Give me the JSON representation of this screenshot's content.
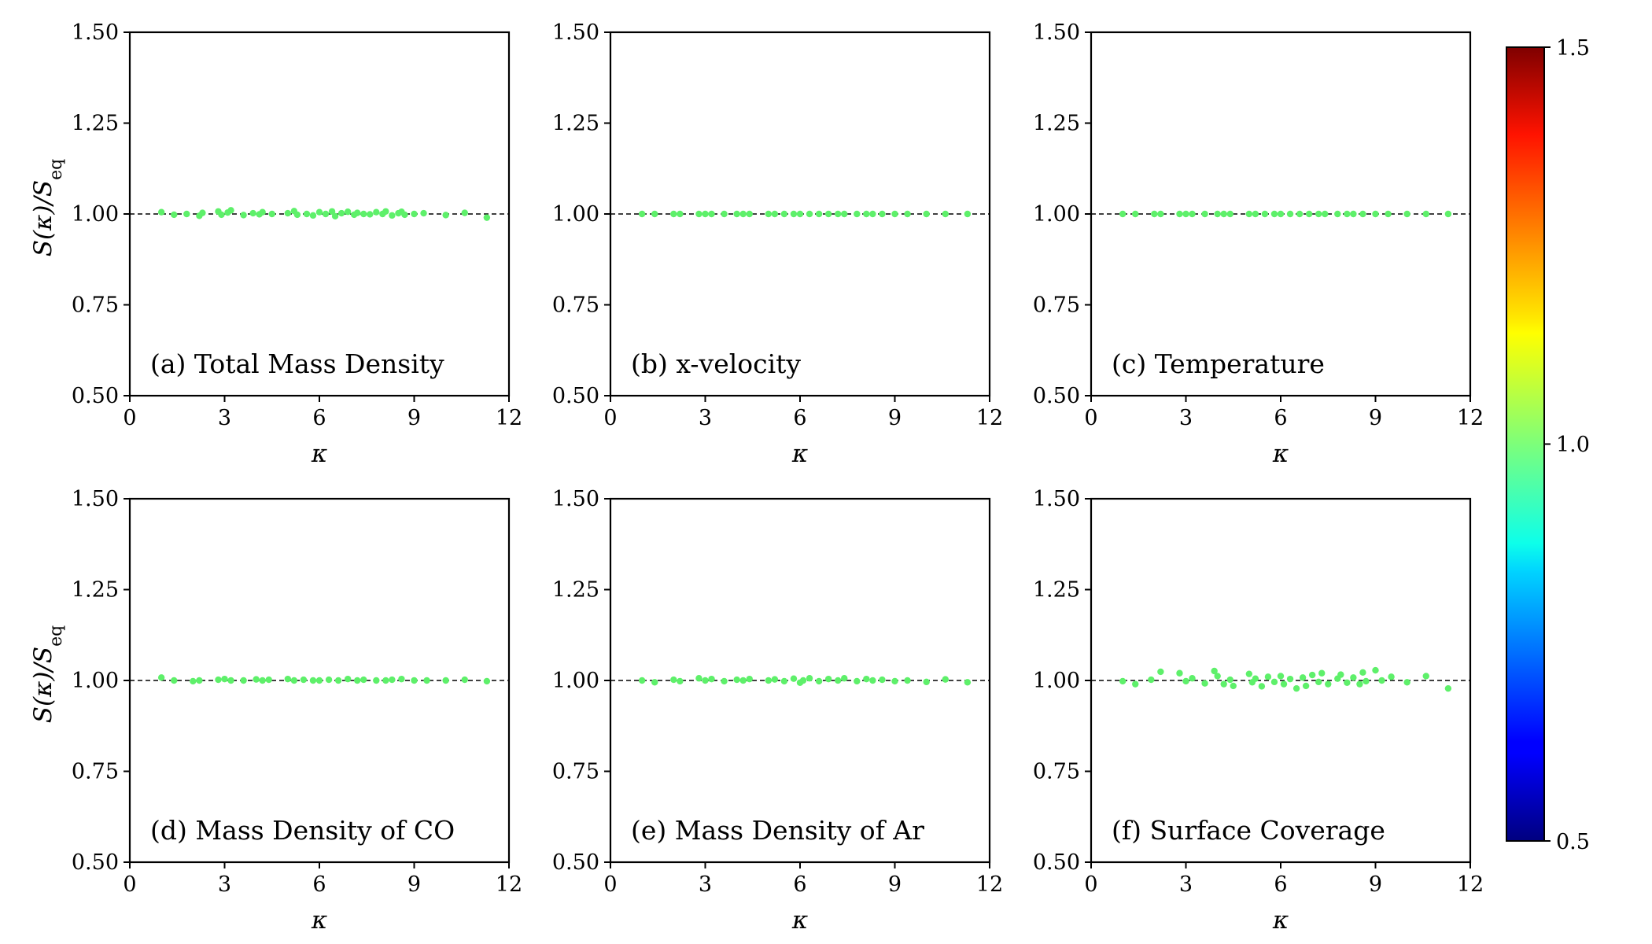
{
  "chart_data": [
    {
      "type": "scatter",
      "panel_label": "(a) Total Mass Density",
      "xlabel": "κ",
      "ylabel": "S(κ)/S_eq",
      "xlim": [
        0,
        12
      ],
      "ylim": [
        0.5,
        1.5
      ],
      "xticks": [
        0,
        3,
        6,
        9,
        12
      ],
      "yticks": [
        0.5,
        0.75,
        1.0,
        1.25,
        1.5
      ],
      "reference_line": 1.0,
      "point_color_value": 1.0,
      "x": [
        1.0,
        1.4,
        1.8,
        2.2,
        2.3,
        2.8,
        2.9,
        3.1,
        3.2,
        3.6,
        3.9,
        4.1,
        4.2,
        4.5,
        5.0,
        5.2,
        5.3,
        5.6,
        5.8,
        6.0,
        6.2,
        6.4,
        6.5,
        6.7,
        6.9,
        7.1,
        7.2,
        7.4,
        7.6,
        7.8,
        8.0,
        8.1,
        8.3,
        8.5,
        8.6,
        8.7,
        9.0,
        9.3,
        10.0,
        10.6,
        11.3
      ],
      "y": [
        1.005,
        0.998,
        1.0,
        0.995,
        1.003,
        1.007,
        0.998,
        1.004,
        1.01,
        0.997,
        1.002,
        0.999,
        1.005,
        1.0,
        1.002,
        1.008,
        0.998,
        1.0,
        0.996,
        1.005,
        1.0,
        1.007,
        0.994,
        1.002,
        1.006,
        0.998,
        1.003,
        1.0,
        0.999,
        1.005,
        1.0,
        1.007,
        0.996,
        1.002,
        1.006,
        0.998,
        1.0,
        1.002,
        0.997,
        1.003,
        0.99
      ]
    },
    {
      "type": "scatter",
      "panel_label": "(b) x-velocity",
      "xlabel": "κ",
      "xlim": [
        0,
        12
      ],
      "ylim": [
        0.5,
        1.5
      ],
      "xticks": [
        0,
        3,
        6,
        9,
        12
      ],
      "yticks": [
        0.5,
        0.75,
        1.0,
        1.25,
        1.5
      ],
      "reference_line": 1.0,
      "point_color_value": 1.0,
      "x": [
        1.0,
        1.4,
        2.0,
        2.2,
        2.8,
        3.0,
        3.2,
        3.6,
        4.0,
        4.2,
        4.4,
        5.0,
        5.2,
        5.5,
        5.8,
        6.0,
        6.3,
        6.6,
        6.9,
        7.2,
        7.4,
        7.8,
        8.1,
        8.3,
        8.6,
        9.0,
        9.4,
        10.0,
        10.6,
        11.3
      ],
      "y": [
        1.0,
        1.0,
        1.0,
        1.0,
        1.0,
        1.0,
        1.0,
        1.0,
        1.0,
        1.0,
        1.0,
        1.0,
        1.0,
        1.0,
        1.0,
        1.0,
        1.0,
        1.0,
        1.0,
        1.0,
        1.0,
        1.0,
        1.0,
        1.0,
        1.0,
        1.0,
        1.0,
        1.0,
        1.0,
        1.0
      ]
    },
    {
      "type": "scatter",
      "panel_label": "(c) Temperature",
      "xlabel": "κ",
      "xlim": [
        0,
        12
      ],
      "ylim": [
        0.5,
        1.5
      ],
      "xticks": [
        0,
        3,
        6,
        9,
        12
      ],
      "yticks": [
        0.5,
        0.75,
        1.0,
        1.25,
        1.5
      ],
      "reference_line": 1.0,
      "point_color_value": 1.0,
      "x": [
        1.0,
        1.4,
        2.0,
        2.2,
        2.8,
        3.0,
        3.2,
        3.6,
        4.0,
        4.2,
        4.4,
        5.0,
        5.2,
        5.5,
        5.8,
        6.0,
        6.3,
        6.6,
        6.9,
        7.2,
        7.4,
        7.8,
        8.1,
        8.3,
        8.6,
        9.0,
        9.4,
        10.0,
        10.6,
        11.3
      ],
      "y": [
        1.0,
        1.0,
        1.0,
        1.0,
        1.0,
        1.0,
        1.0,
        1.0,
        1.0,
        1.0,
        1.0,
        1.0,
        1.0,
        1.0,
        1.0,
        1.0,
        1.0,
        1.0,
        1.0,
        1.0,
        1.0,
        1.0,
        1.0,
        1.0,
        1.0,
        1.0,
        1.0,
        1.0,
        1.0,
        1.0
      ]
    },
    {
      "type": "scatter",
      "panel_label": "(d) Mass Density of CO",
      "xlabel": "κ",
      "ylabel": "S(κ)/S_eq",
      "xlim": [
        0,
        12
      ],
      "ylim": [
        0.5,
        1.5
      ],
      "xticks": [
        0,
        3,
        6,
        9,
        12
      ],
      "yticks": [
        0.5,
        0.75,
        1.0,
        1.25,
        1.5
      ],
      "reference_line": 1.0,
      "point_color_value": 1.0,
      "x": [
        1.0,
        1.4,
        2.0,
        2.2,
        2.8,
        3.0,
        3.2,
        3.6,
        4.0,
        4.2,
        4.4,
        5.0,
        5.2,
        5.5,
        5.8,
        6.0,
        6.3,
        6.6,
        6.9,
        7.2,
        7.4,
        7.8,
        8.1,
        8.3,
        8.6,
        9.0,
        9.4,
        10.0,
        10.6,
        11.3
      ],
      "y": [
        1.008,
        1.0,
        0.998,
        1.0,
        1.002,
        1.004,
        1.0,
        1.0,
        1.003,
        1.0,
        1.002,
        1.004,
        1.0,
        1.002,
        1.0,
        1.0,
        1.002,
        1.0,
        1.004,
        1.0,
        1.002,
        1.0,
        1.0,
        1.002,
        1.004,
        1.0,
        1.0,
        1.0,
        1.002,
        0.998
      ]
    },
    {
      "type": "scatter",
      "panel_label": "(e) Mass Density of Ar",
      "xlabel": "κ",
      "xlim": [
        0,
        12
      ],
      "ylim": [
        0.5,
        1.5
      ],
      "xticks": [
        0,
        3,
        6,
        9,
        12
      ],
      "yticks": [
        0.5,
        0.75,
        1.0,
        1.25,
        1.5
      ],
      "reference_line": 1.0,
      "point_color_value": 1.0,
      "x": [
        1.0,
        1.4,
        2.0,
        2.2,
        2.8,
        3.0,
        3.2,
        3.6,
        4.0,
        4.2,
        4.4,
        5.0,
        5.2,
        5.5,
        5.8,
        6.0,
        6.1,
        6.3,
        6.6,
        6.9,
        7.2,
        7.4,
        7.8,
        8.1,
        8.3,
        8.6,
        9.0,
        9.4,
        10.0,
        10.6,
        11.3
      ],
      "y": [
        1.0,
        0.995,
        1.002,
        0.998,
        1.006,
        1.0,
        1.004,
        0.998,
        1.002,
        1.0,
        1.004,
        1.0,
        1.003,
        0.998,
        1.005,
        0.994,
        1.0,
        1.006,
        0.998,
        1.004,
        1.0,
        1.006,
        0.998,
        1.004,
        1.0,
        1.002,
        0.998,
        1.0,
        0.996,
        1.003,
        0.995
      ]
    },
    {
      "type": "scatter",
      "panel_label": "(f) Surface Coverage",
      "xlabel": "κ",
      "xlim": [
        0,
        12
      ],
      "ylim": [
        0.5,
        1.5
      ],
      "xticks": [
        0,
        3,
        6,
        9,
        12
      ],
      "yticks": [
        0.5,
        0.75,
        1.0,
        1.25,
        1.5
      ],
      "reference_line": 1.0,
      "point_color_value": 1.0,
      "x": [
        1.0,
        1.4,
        1.9,
        2.2,
        2.8,
        3.0,
        3.2,
        3.6,
        3.9,
        4.0,
        4.2,
        4.4,
        4.5,
        5.0,
        5.1,
        5.2,
        5.4,
        5.6,
        5.8,
        6.0,
        6.1,
        6.3,
        6.5,
        6.7,
        6.8,
        7.0,
        7.2,
        7.3,
        7.5,
        7.8,
        7.9,
        8.1,
        8.3,
        8.5,
        8.6,
        8.7,
        9.0,
        9.2,
        9.5,
        10.0,
        10.6,
        11.3
      ],
      "y": [
        0.998,
        0.99,
        1.002,
        1.024,
        1.02,
        0.998,
        1.006,
        0.992,
        1.026,
        1.012,
        0.99,
        1.002,
        0.985,
        1.018,
        0.995,
        1.005,
        0.984,
        1.01,
        0.996,
        1.012,
        0.99,
        1.004,
        0.978,
        1.008,
        0.985,
        1.015,
        0.996,
        1.02,
        0.99,
        1.005,
        1.016,
        0.994,
        1.008,
        0.99,
        1.022,
        0.998,
        1.028,
        1.0,
        1.01,
        0.995,
        1.012,
        0.978
      ]
    }
  ],
  "colorbar": {
    "colormap": "jet",
    "min": 0.5,
    "max": 1.5,
    "ticks": [
      0.5,
      1.0,
      1.5
    ],
    "tick_labels": [
      "0.5",
      "1.0",
      "1.5"
    ]
  },
  "colors": {
    "point": "#5ef06a",
    "axes": "#000000"
  }
}
